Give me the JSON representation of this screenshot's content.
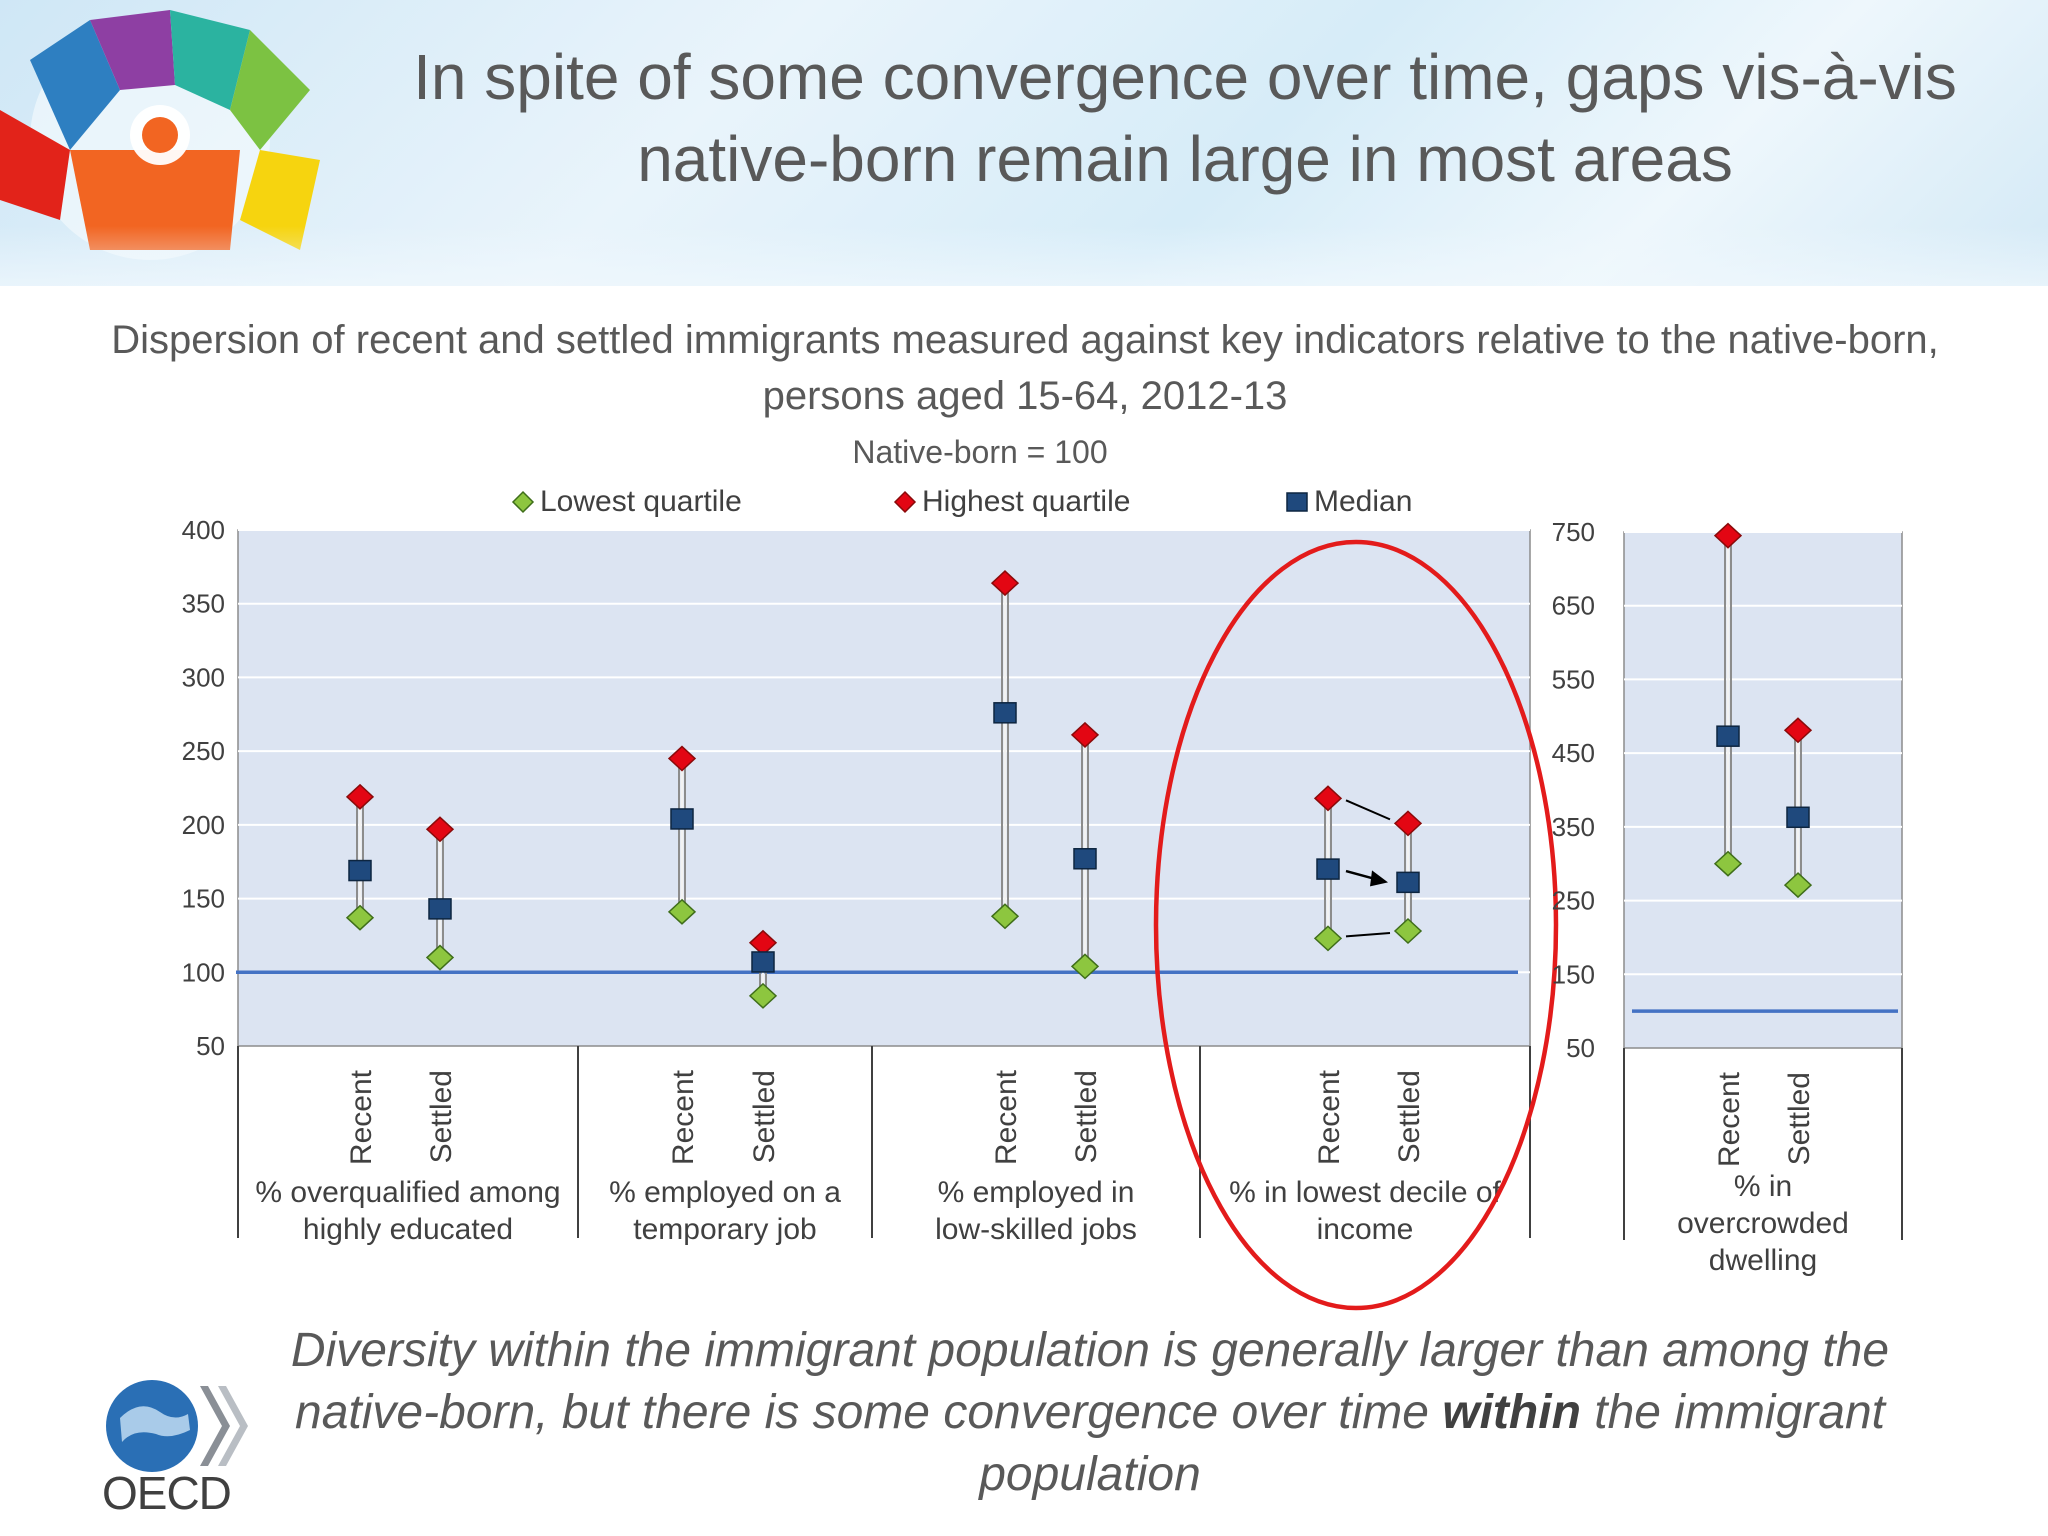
{
  "title": "In spite of some convergence over time, gaps vis-à-vis native-born remain large in most areas",
  "subtitle": "Dispersion of recent and settled immigrants measured against key indicators relative to the native-born, persons aged 15-64, 2012-13",
  "note": "Native-born = 100",
  "legend": {
    "lowest": "Lowest quartile",
    "highest": "Highest quartile",
    "median": "Median"
  },
  "colors": {
    "lowest": "#8dc63f",
    "highest": "#e30613",
    "median": "#1f497d",
    "plot_bg": "#dce4f2",
    "reference_line": "#4472c4",
    "highlight": "#e31b1b"
  },
  "chart_data": [
    {
      "type": "scatter",
      "subtype": "high-low-median",
      "ylim": [
        50,
        400
      ],
      "yticks": [
        50,
        100,
        150,
        200,
        250,
        300,
        350,
        400
      ],
      "reference_value": 100,
      "grid": true,
      "groups": [
        {
          "label": "% overqualified among highly educated",
          "items": [
            {
              "x": "Recent",
              "low": 137,
              "median": 169,
              "high": 219
            },
            {
              "x": "Settled",
              "low": 110,
              "median": 143,
              "high": 197
            }
          ]
        },
        {
          "label": "% employed on a temporary job",
          "items": [
            {
              "x": "Recent",
              "low": 141,
              "median": 204,
              "high": 245
            },
            {
              "x": "Settled",
              "low": 84,
              "median": 107,
              "high": 120
            }
          ]
        },
        {
          "label": "% employed in low-skilled jobs",
          "items": [
            {
              "x": "Recent",
              "low": 138,
              "median": 276,
              "high": 364
            },
            {
              "x": "Settled",
              "low": 104,
              "median": 177,
              "high": 261
            }
          ]
        },
        {
          "label": "% in lowest decile of income",
          "highlighted": true,
          "items": [
            {
              "x": "Recent",
              "low": 123,
              "median": 170,
              "high": 218
            },
            {
              "x": "Settled",
              "low": 128,
              "median": 161,
              "high": 201
            }
          ]
        }
      ]
    },
    {
      "type": "scatter",
      "subtype": "high-low-median",
      "ylim": [
        50,
        750
      ],
      "yticks": [
        50,
        150,
        250,
        350,
        450,
        550,
        650,
        750
      ],
      "reference_value": 100,
      "grid": true,
      "groups": [
        {
          "label": "% in overcrowded dwelling",
          "items": [
            {
              "x": "Recent",
              "low": 300,
              "median": 473,
              "high": 745
            },
            {
              "x": "Settled",
              "low": 271,
              "median": 363,
              "high": 481
            }
          ]
        }
      ]
    }
  ],
  "takeaway": {
    "part1": "Diversity within the immigrant population is generally larger than among the native-born, but there is some convergence over time ",
    "bold": "within",
    "part2": " the immigrant population"
  },
  "logo": {
    "text": "OECD"
  }
}
